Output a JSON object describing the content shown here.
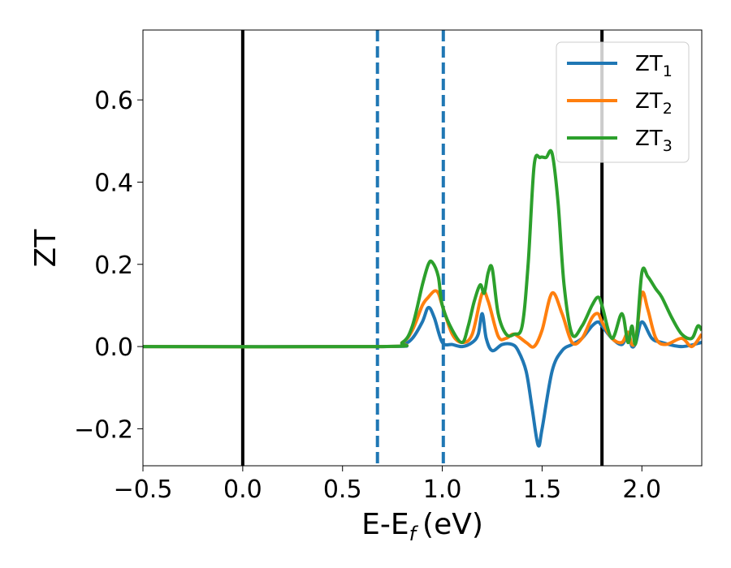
{
  "chart_data": {
    "type": "line",
    "xlabel": "E-E",
    "xlabel_sub": "f",
    "xlabel_unit": "(eV)",
    "ylabel": "ZT",
    "xlim": [
      -0.5,
      2.3
    ],
    "ylim": [
      -0.29,
      0.77
    ],
    "x_ticks": [
      -0.5,
      0.0,
      0.5,
      1.0,
      1.5,
      2.0
    ],
    "x_tick_labels": [
      "−0.5",
      "0.0",
      "0.5",
      "1.0",
      "1.5",
      "2.0"
    ],
    "y_ticks": [
      -0.2,
      0.0,
      0.2,
      0.4,
      0.6
    ],
    "y_tick_labels": [
      "−0.2",
      "0.0",
      "0.2",
      "0.4",
      "0.6"
    ],
    "grid": false,
    "legend_position": "upper right",
    "vertical_lines": [
      {
        "x": 0.0,
        "style": "solid",
        "color": "#000000"
      },
      {
        "x": 1.8,
        "style": "solid",
        "color": "#000000"
      },
      {
        "x": 0.675,
        "style": "dashed",
        "color": "#1f77b4"
      },
      {
        "x": 1.005,
        "style": "dashed",
        "color": "#1f77b4"
      }
    ],
    "series": [
      {
        "name": "ZT",
        "sub": "1",
        "color": "#1f77b4",
        "x": [
          -0.5,
          0.7,
          0.8,
          0.85,
          0.9,
          0.93,
          0.96,
          1.0,
          1.05,
          1.1,
          1.15,
          1.18,
          1.2,
          1.22,
          1.25,
          1.3,
          1.35,
          1.38,
          1.42,
          1.45,
          1.48,
          1.5,
          1.55,
          1.6,
          1.65,
          1.7,
          1.75,
          1.78,
          1.8,
          1.85,
          1.9,
          1.93,
          1.95,
          1.97,
          2.0,
          2.05,
          2.1,
          2.2,
          2.3
        ],
        "y": [
          0.0,
          0.0,
          0.005,
          0.02,
          0.06,
          0.095,
          0.07,
          0.01,
          0.005,
          0.0,
          0.01,
          0.03,
          0.08,
          0.02,
          -0.01,
          0.005,
          0.005,
          -0.01,
          -0.06,
          -0.15,
          -0.24,
          -0.2,
          -0.06,
          -0.01,
          0.005,
          0.02,
          0.05,
          0.06,
          0.05,
          0.02,
          0.005,
          0.03,
          0.0,
          0.01,
          0.06,
          0.02,
          0.01,
          0.0,
          0.01
        ]
      },
      {
        "name": "ZT",
        "sub": "2",
        "color": "#ff7f0e",
        "x": [
          -0.5,
          0.7,
          0.8,
          0.85,
          0.9,
          0.93,
          0.96,
          0.98,
          1.0,
          1.05,
          1.1,
          1.15,
          1.2,
          1.23,
          1.28,
          1.32,
          1.36,
          1.42,
          1.46,
          1.5,
          1.55,
          1.6,
          1.65,
          1.7,
          1.75,
          1.78,
          1.8,
          1.85,
          1.9,
          1.93,
          1.95,
          1.97,
          2.0,
          2.03,
          2.07,
          2.12,
          2.2,
          2.25,
          2.3
        ],
        "y": [
          0.0,
          0.0,
          0.01,
          0.04,
          0.1,
          0.12,
          0.135,
          0.13,
          0.1,
          0.03,
          0.01,
          0.03,
          0.13,
          0.11,
          0.025,
          0.02,
          0.03,
          0.01,
          0.0,
          0.04,
          0.13,
          0.08,
          0.01,
          0.02,
          0.07,
          0.08,
          0.06,
          0.02,
          0.01,
          0.035,
          0.005,
          0.02,
          0.13,
          0.09,
          0.02,
          0.005,
          0.02,
          0.0,
          0.03
        ]
      },
      {
        "name": "ZT",
        "sub": "3",
        "color": "#2ca02c",
        "x": [
          -0.5,
          0.7,
          0.8,
          0.85,
          0.9,
          0.93,
          0.95,
          0.98,
          1.0,
          1.05,
          1.1,
          1.13,
          1.16,
          1.19,
          1.21,
          1.23,
          1.25,
          1.28,
          1.32,
          1.36,
          1.4,
          1.43,
          1.46,
          1.49,
          1.52,
          1.55,
          1.58,
          1.61,
          1.65,
          1.7,
          1.75,
          1.78,
          1.8,
          1.85,
          1.9,
          1.93,
          1.95,
          1.97,
          2.0,
          2.03,
          2.07,
          2.1,
          2.15,
          2.2,
          2.25,
          2.28,
          2.3
        ],
        "y": [
          0.0,
          0.0,
          0.01,
          0.05,
          0.15,
          0.2,
          0.205,
          0.17,
          0.1,
          0.04,
          0.01,
          0.05,
          0.11,
          0.15,
          0.13,
          0.18,
          0.19,
          0.08,
          0.03,
          0.03,
          0.05,
          0.2,
          0.44,
          0.46,
          0.46,
          0.47,
          0.35,
          0.15,
          0.03,
          0.05,
          0.1,
          0.12,
          0.1,
          0.02,
          0.08,
          0.01,
          0.05,
          0.01,
          0.18,
          0.17,
          0.14,
          0.12,
          0.07,
          0.03,
          0.02,
          0.05,
          0.04
        ]
      }
    ]
  }
}
